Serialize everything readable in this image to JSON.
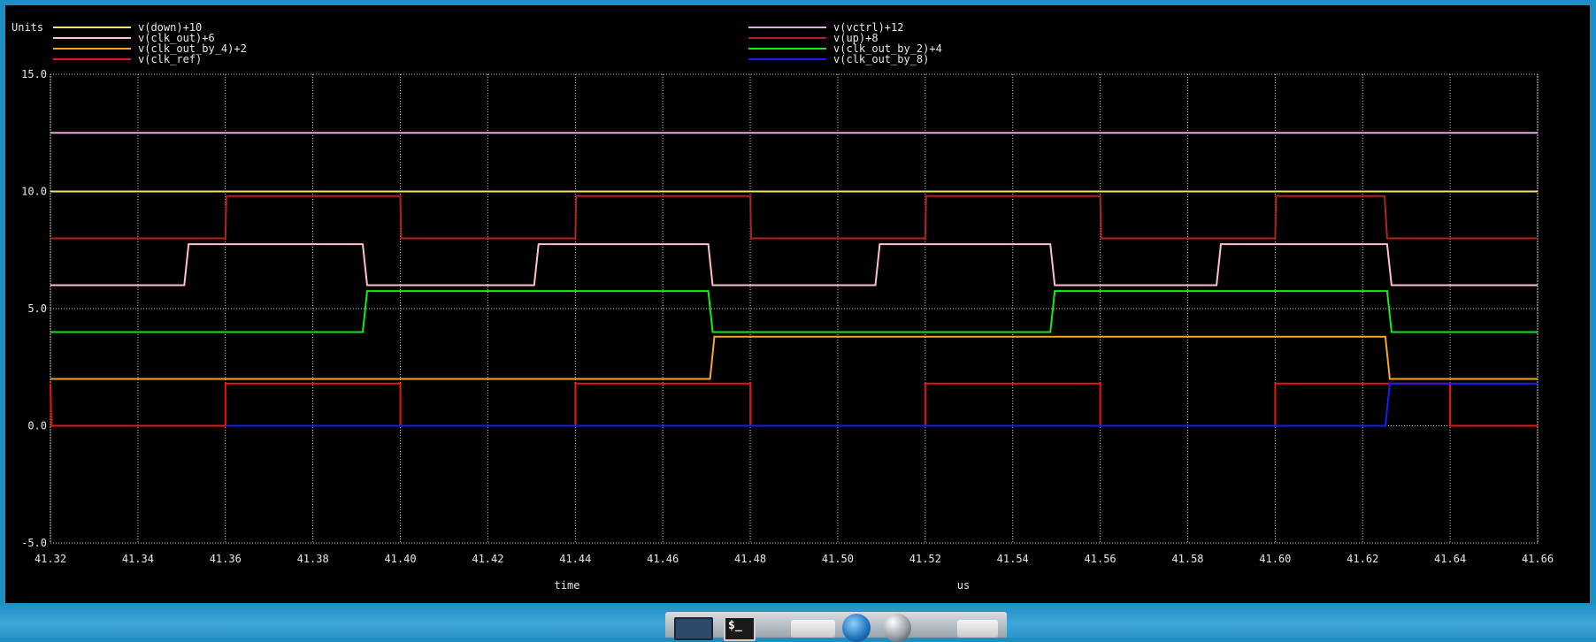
{
  "window": {
    "units_label": "Units"
  },
  "chart_data": {
    "type": "line",
    "xlabel": "time",
    "xunit": "us",
    "xlim": [
      41.32,
      41.66
    ],
    "ylim": [
      -5,
      15
    ],
    "x_ticks": [
      "41.32",
      "41.34",
      "41.36",
      "41.38",
      "41.40",
      "41.42",
      "41.44",
      "41.46",
      "41.48",
      "41.50",
      "41.52",
      "41.54",
      "41.56",
      "41.58",
      "41.60",
      "41.62",
      "41.64",
      "41.66"
    ],
    "y_ticks": [
      "-5.0",
      "0.0",
      "5.0",
      "10.0",
      "15.0"
    ],
    "grid": true,
    "legend_placement": "top",
    "series": [
      {
        "name": "v(down)+10",
        "color": "#f2e27a",
        "points": [
          [
            41.32,
            10.0
          ],
          [
            41.66,
            10.0
          ]
        ]
      },
      {
        "name": "v(clk_out)+6",
        "color": "#ffc0cb",
        "points": [
          [
            41.32,
            6.0
          ],
          [
            41.3506,
            6.0
          ],
          [
            41.3516,
            7.75
          ],
          [
            41.3914,
            7.75
          ],
          [
            41.3924,
            6.0
          ],
          [
            41.4306,
            6.0
          ],
          [
            41.4316,
            7.75
          ],
          [
            41.4704,
            7.75
          ],
          [
            41.4714,
            6.0
          ],
          [
            41.5086,
            6.0
          ],
          [
            41.5096,
            7.75
          ],
          [
            41.5486,
            7.75
          ],
          [
            41.5496,
            6.0
          ],
          [
            41.5866,
            6.0
          ],
          [
            41.5876,
            7.75
          ],
          [
            41.6256,
            7.75
          ],
          [
            41.6266,
            6.0
          ],
          [
            41.66,
            6.0
          ]
        ]
      },
      {
        "name": "v(clk_out_by_4)+2",
        "color": "#f5a623",
        "points": [
          [
            41.32,
            2.0
          ],
          [
            41.4708,
            2.0
          ],
          [
            41.4718,
            3.8
          ],
          [
            41.6252,
            3.8
          ],
          [
            41.6262,
            2.0
          ],
          [
            41.66,
            2.0
          ]
        ]
      },
      {
        "name": "v(clk_ref)",
        "color": "#ee1111",
        "points": [
          [
            41.32,
            1.8
          ],
          [
            41.3202,
            0.0
          ],
          [
            41.36,
            0.0
          ],
          [
            41.36,
            1.8
          ],
          [
            41.4,
            1.8
          ],
          [
            41.4,
            0.0
          ],
          [
            41.44,
            0.0
          ],
          [
            41.44,
            1.8
          ],
          [
            41.48,
            1.8
          ],
          [
            41.48,
            0.0
          ],
          [
            41.52,
            0.0
          ],
          [
            41.52,
            1.8
          ],
          [
            41.56,
            1.8
          ],
          [
            41.56,
            0.0
          ],
          [
            41.6,
            0.0
          ],
          [
            41.6,
            1.8
          ],
          [
            41.64,
            1.8
          ],
          [
            41.64,
            0.0
          ],
          [
            41.66,
            0.0
          ]
        ]
      },
      {
        "name": "v(vctrl)+12",
        "color": "#e9a8e9",
        "points": [
          [
            41.32,
            12.5
          ],
          [
            41.66,
            12.5
          ]
        ]
      },
      {
        "name": "v(up)+8",
        "color": "#b22222",
        "points": [
          [
            41.32,
            8.0
          ],
          [
            41.36,
            8.0
          ],
          [
            41.3602,
            9.8
          ],
          [
            41.4,
            9.8
          ],
          [
            41.4002,
            8.0
          ],
          [
            41.44,
            8.0
          ],
          [
            41.4402,
            9.8
          ],
          [
            41.48,
            9.8
          ],
          [
            41.4802,
            8.0
          ],
          [
            41.52,
            8.0
          ],
          [
            41.5202,
            9.8
          ],
          [
            41.56,
            9.8
          ],
          [
            41.5602,
            8.0
          ],
          [
            41.6,
            8.0
          ],
          [
            41.6002,
            9.8
          ],
          [
            41.625,
            9.8
          ],
          [
            41.6256,
            8.0
          ],
          [
            41.66,
            8.0
          ]
        ]
      },
      {
        "name": "v(clk_out_by_2)+4",
        "color": "#11ee11",
        "points": [
          [
            41.32,
            4.0
          ],
          [
            41.3914,
            4.0
          ],
          [
            41.3924,
            5.75
          ],
          [
            41.4704,
            5.75
          ],
          [
            41.4714,
            4.0
          ],
          [
            41.5486,
            4.0
          ],
          [
            41.5496,
            5.75
          ],
          [
            41.6256,
            5.75
          ],
          [
            41.6266,
            4.0
          ],
          [
            41.66,
            4.0
          ]
        ]
      },
      {
        "name": "v(clk_out_by_8)",
        "color": "#1a1aff",
        "points": [
          [
            41.36,
            0.0
          ],
          [
            41.4,
            0.0
          ],
          [
            41.44,
            0.0
          ],
          [
            41.48,
            0.0
          ],
          [
            41.52,
            0.0
          ],
          [
            41.56,
            0.0
          ],
          [
            41.6,
            0.0
          ],
          [
            41.6252,
            0.0
          ],
          [
            41.6262,
            1.8
          ],
          [
            41.66,
            1.8
          ]
        ]
      }
    ]
  }
}
